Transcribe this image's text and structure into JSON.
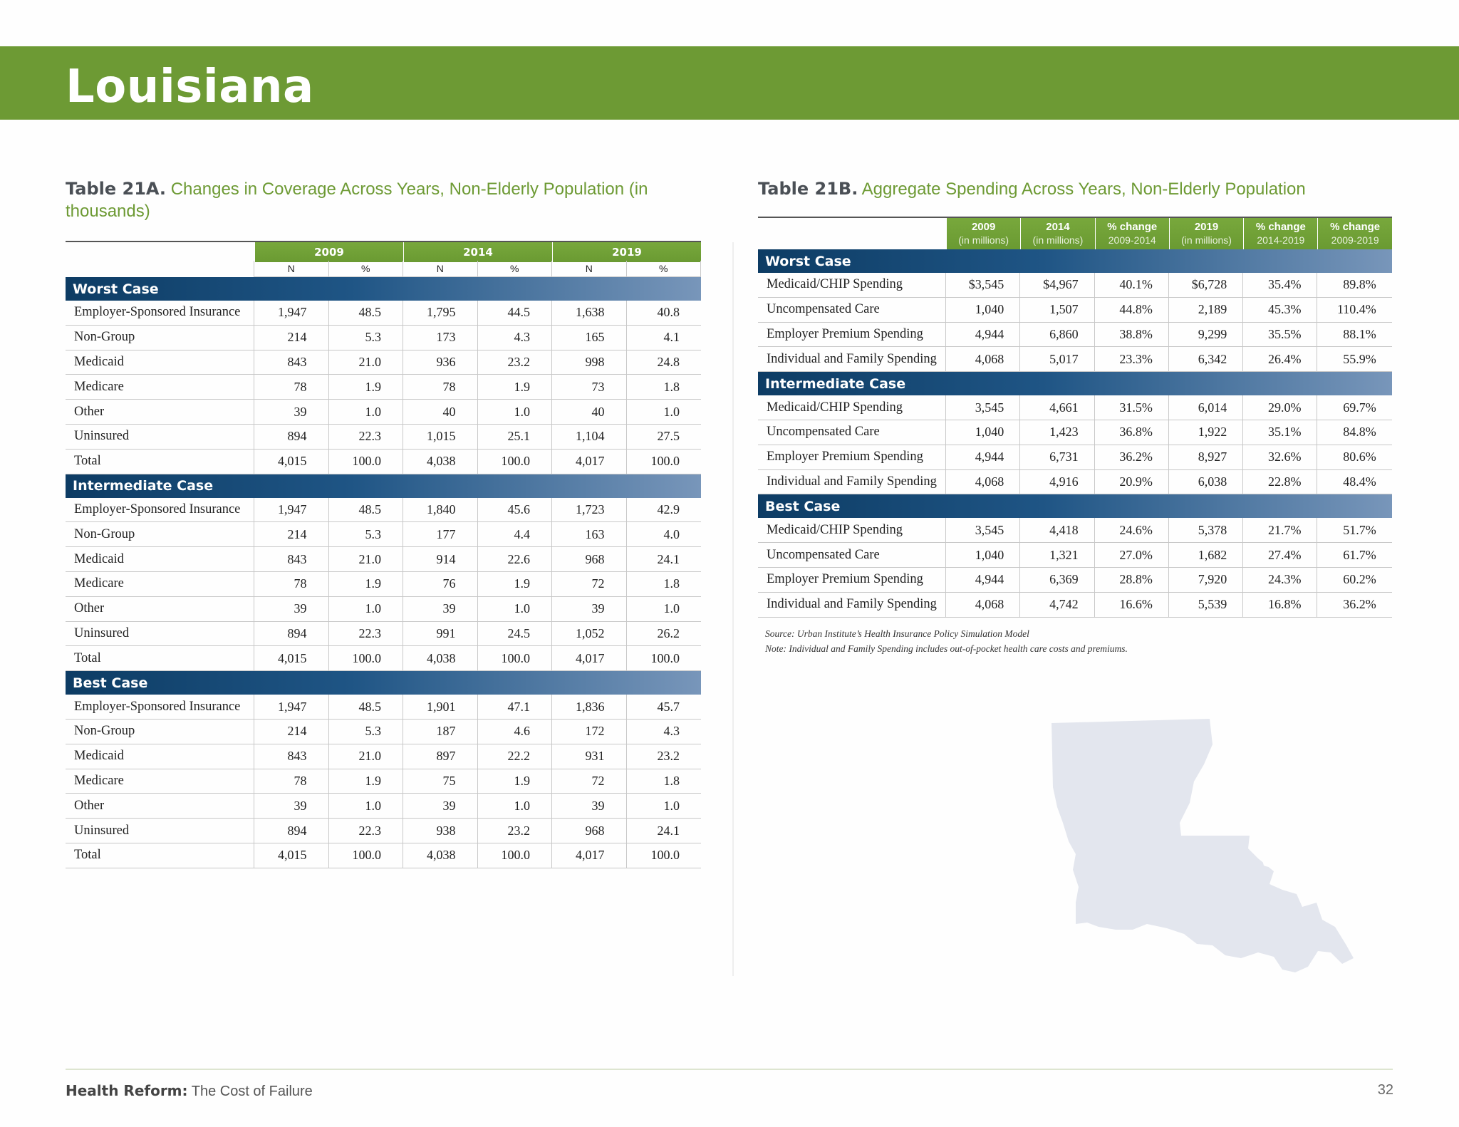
{
  "page_title": "Louisiana",
  "tableA": {
    "label": "Table 21A.",
    "caption": "Changes in Coverage Across Years, Non-Elderly Population (in thousands)",
    "years": [
      "2009",
      "2014",
      "2019"
    ],
    "subheaders": [
      "N",
      "%",
      "N",
      "%",
      "N",
      "%"
    ],
    "sections": [
      {
        "name": "Worst Case",
        "rows": [
          {
            "label": "Employer-Sponsored Insurance",
            "v": [
              "1,947",
              "48.5",
              "1,795",
              "44.5",
              "1,638",
              "40.8"
            ]
          },
          {
            "label": "Non-Group",
            "v": [
              "214",
              "5.3",
              "173",
              "4.3",
              "165",
              "4.1"
            ]
          },
          {
            "label": "Medicaid",
            "v": [
              "843",
              "21.0",
              "936",
              "23.2",
              "998",
              "24.8"
            ]
          },
          {
            "label": "Medicare",
            "v": [
              "78",
              "1.9",
              "78",
              "1.9",
              "73",
              "1.8"
            ]
          },
          {
            "label": "Other",
            "v": [
              "39",
              "1.0",
              "40",
              "1.0",
              "40",
              "1.0"
            ]
          },
          {
            "label": "Uninsured",
            "v": [
              "894",
              "22.3",
              "1,015",
              "25.1",
              "1,104",
              "27.5"
            ]
          },
          {
            "label": "Total",
            "v": [
              "4,015",
              "100.0",
              "4,038",
              "100.0",
              "4,017",
              "100.0"
            ]
          }
        ]
      },
      {
        "name": "Intermediate Case",
        "rows": [
          {
            "label": "Employer-Sponsored Insurance",
            "v": [
              "1,947",
              "48.5",
              "1,840",
              "45.6",
              "1,723",
              "42.9"
            ]
          },
          {
            "label": "Non-Group",
            "v": [
              "214",
              "5.3",
              "177",
              "4.4",
              "163",
              "4.0"
            ]
          },
          {
            "label": "Medicaid",
            "v": [
              "843",
              "21.0",
              "914",
              "22.6",
              "968",
              "24.1"
            ]
          },
          {
            "label": "Medicare",
            "v": [
              "78",
              "1.9",
              "76",
              "1.9",
              "72",
              "1.8"
            ]
          },
          {
            "label": "Other",
            "v": [
              "39",
              "1.0",
              "39",
              "1.0",
              "39",
              "1.0"
            ]
          },
          {
            "label": "Uninsured",
            "v": [
              "894",
              "22.3",
              "991",
              "24.5",
              "1,052",
              "26.2"
            ]
          },
          {
            "label": "Total",
            "v": [
              "4,015",
              "100.0",
              "4,038",
              "100.0",
              "4,017",
              "100.0"
            ]
          }
        ]
      },
      {
        "name": "Best Case",
        "rows": [
          {
            "label": "Employer-Sponsored Insurance",
            "v": [
              "1,947",
              "48.5",
              "1,901",
              "47.1",
              "1,836",
              "45.7"
            ]
          },
          {
            "label": "Non-Group",
            "v": [
              "214",
              "5.3",
              "187",
              "4.6",
              "172",
              "4.3"
            ]
          },
          {
            "label": "Medicaid",
            "v": [
              "843",
              "21.0",
              "897",
              "22.2",
              "931",
              "23.2"
            ]
          },
          {
            "label": "Medicare",
            "v": [
              "78",
              "1.9",
              "75",
              "1.9",
              "72",
              "1.8"
            ]
          },
          {
            "label": "Other",
            "v": [
              "39",
              "1.0",
              "39",
              "1.0",
              "39",
              "1.0"
            ]
          },
          {
            "label": "Uninsured",
            "v": [
              "894",
              "22.3",
              "938",
              "23.2",
              "968",
              "24.1"
            ]
          },
          {
            "label": "Total",
            "v": [
              "4,015",
              "100.0",
              "4,038",
              "100.0",
              "4,017",
              "100.0"
            ]
          }
        ]
      }
    ]
  },
  "tableB": {
    "label": "Table 21B.",
    "caption": "Aggregate Spending Across Years, Non-Elderly Population",
    "headers": [
      {
        "line1": "2009",
        "line2": "(in millions)"
      },
      {
        "line1": "2014",
        "line2": "(in millions)"
      },
      {
        "line1": "% change",
        "line2": "2009-2014"
      },
      {
        "line1": "2019",
        "line2": "(in millions)"
      },
      {
        "line1": "% change",
        "line2": "2014-2019"
      },
      {
        "line1": "% change",
        "line2": "2009-2019"
      }
    ],
    "sections": [
      {
        "name": "Worst Case",
        "rows": [
          {
            "label": "Medicaid/CHIP Spending",
            "v": [
              "$3,545",
              "$4,967",
              "40.1%",
              "$6,728",
              "35.4%",
              "89.8%"
            ]
          },
          {
            "label": "Uncompensated Care",
            "v": [
              "1,040",
              "1,507",
              "44.8%",
              "2,189",
              "45.3%",
              "110.4%"
            ]
          },
          {
            "label": "Employer Premium Spending",
            "v": [
              "4,944",
              "6,860",
              "38.8%",
              "9,299",
              "35.5%",
              "88.1%"
            ]
          },
          {
            "label": "Individual and Family Spending",
            "v": [
              "4,068",
              "5,017",
              "23.3%",
              "6,342",
              "26.4%",
              "55.9%"
            ]
          }
        ]
      },
      {
        "name": "Intermediate Case",
        "rows": [
          {
            "label": "Medicaid/CHIP Spending",
            "v": [
              "3,545",
              "4,661",
              "31.5%",
              "6,014",
              "29.0%",
              "69.7%"
            ]
          },
          {
            "label": "Uncompensated Care",
            "v": [
              "1,040",
              "1,423",
              "36.8%",
              "1,922",
              "35.1%",
              "84.8%"
            ]
          },
          {
            "label": "Employer Premium Spending",
            "v": [
              "4,944",
              "6,731",
              "36.2%",
              "8,927",
              "32.6%",
              "80.6%"
            ]
          },
          {
            "label": "Individual and Family Spending",
            "v": [
              "4,068",
              "4,916",
              "20.9%",
              "6,038",
              "22.8%",
              "48.4%"
            ]
          }
        ]
      },
      {
        "name": "Best Case",
        "rows": [
          {
            "label": "Medicaid/CHIP Spending",
            "v": [
              "3,545",
              "4,418",
              "24.6%",
              "5,378",
              "21.7%",
              "51.7%"
            ]
          },
          {
            "label": "Uncompensated Care",
            "v": [
              "1,040",
              "1,321",
              "27.0%",
              "1,682",
              "27.4%",
              "61.7%"
            ]
          },
          {
            "label": "Employer Premium Spending",
            "v": [
              "4,944",
              "6,369",
              "28.8%",
              "7,920",
              "24.3%",
              "60.2%"
            ]
          },
          {
            "label": "Individual and Family Spending",
            "v": [
              "4,068",
              "4,742",
              "16.6%",
              "5,539",
              "16.8%",
              "36.2%"
            ]
          }
        ]
      }
    ],
    "source": "Source: Urban Institute’s Health Insurance Policy Simulation Model",
    "note": "Note: Individual and Family Spending includes out-of-pocket health care costs and premiums."
  },
  "footer": {
    "bold": "Health Reform:",
    "text": " The Cost of Failure",
    "page_number": "32"
  },
  "colors": {
    "banner_green": "#6d9a34",
    "section_blue": "#0d3c64",
    "map_gray": "#e3e6ee"
  },
  "map_icon": "louisiana-state-silhouette"
}
